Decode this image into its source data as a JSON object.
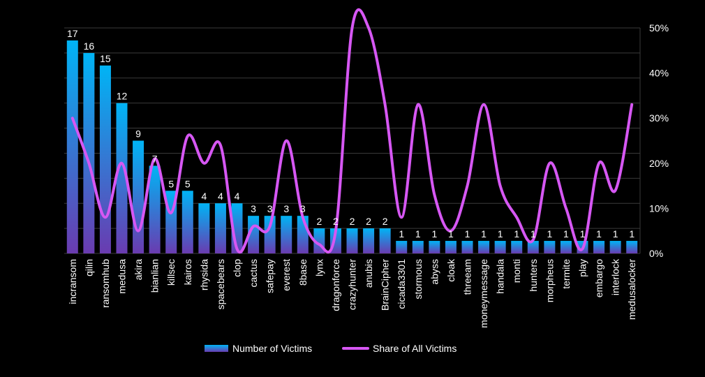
{
  "chart_data": {
    "type": "bar",
    "categories": [
      "incransom",
      "qilin",
      "ransomhub",
      "medusa",
      "akira",
      "bianlian",
      "killsec",
      "kairos",
      "rhysida",
      "spacebears",
      "clop",
      "cactus",
      "safepay",
      "everest",
      "8base",
      "lynx",
      "dragonforce",
      "crazyhunter",
      "anubis",
      "BrainCipher",
      "cicada3301",
      "stormous",
      "abyss",
      "cloak",
      "threeam",
      "moneymessage",
      "handala",
      "monti",
      "hunters",
      "morpheus",
      "termite",
      "play",
      "embargo",
      "interlock",
      "medusalocker"
    ],
    "series": [
      {
        "name": "Number of Victims",
        "type": "bar",
        "axis": "left",
        "values": [
          17,
          16,
          15,
          12,
          9,
          7,
          5,
          5,
          4,
          4,
          4,
          3,
          3,
          3,
          3,
          2,
          2,
          2,
          2,
          2,
          1,
          1,
          1,
          1,
          1,
          1,
          1,
          1,
          1,
          1,
          1,
          1,
          1,
          1,
          1
        ]
      },
      {
        "name": "Share of All Victims",
        "type": "line",
        "axis": "right",
        "values": [
          30,
          20,
          8,
          20,
          5,
          21,
          9,
          26,
          20,
          24,
          1,
          6,
          6,
          25,
          8,
          2,
          5,
          50,
          50,
          33,
          8,
          33,
          13,
          5,
          15,
          33,
          15,
          8,
          3,
          20,
          10,
          1,
          20,
          14,
          33
        ]
      }
    ],
    "y_left": {
      "min": 0,
      "max": 18
    },
    "y_right": {
      "ticks": [
        "0%",
        "10%",
        "20%",
        "30%",
        "40%",
        "50%"
      ],
      "min": 0,
      "max": 50
    },
    "grid": true,
    "legend": "bottom",
    "colors": {
      "background": "#000000",
      "bar_top": "#00b4f5",
      "bar_bottom": "#6a3bb0",
      "line": "#d657f3",
      "grid": "#3a3a3a",
      "text": "#ffffff"
    }
  }
}
